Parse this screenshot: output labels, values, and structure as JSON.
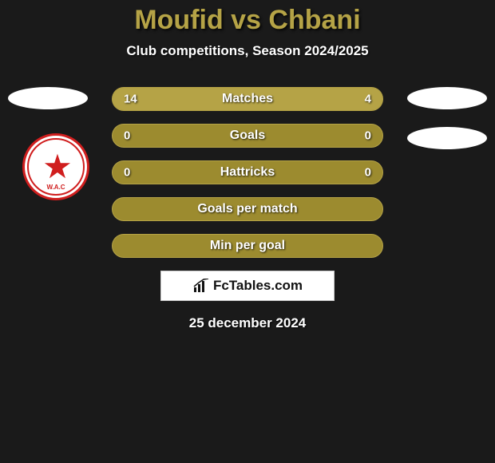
{
  "header": {
    "title": "Moufid vs Chbani",
    "subtitle": "Club competitions, Season 2024/2025"
  },
  "colors": {
    "bg": "#1a1a1a",
    "bar_base": "#9c8b2f",
    "bar_fill": "#b5a346",
    "title_color": "#b5a346",
    "text": "#ffffff",
    "logo_red": "#d01e1e",
    "logo_white": "#ffffff"
  },
  "left_club": {
    "abbr": "W.A.C",
    "name": "Wydad AC"
  },
  "bars": [
    {
      "label": "Matches",
      "left": "14",
      "right": "4",
      "left_pct": 77.8,
      "right_pct": 22.2,
      "show_values": true
    },
    {
      "label": "Goals",
      "left": "0",
      "right": "0",
      "left_pct": 0,
      "right_pct": 0,
      "show_values": true
    },
    {
      "label": "Hattricks",
      "left": "0",
      "right": "0",
      "left_pct": 0,
      "right_pct": 0,
      "show_values": true
    },
    {
      "label": "Goals per match",
      "left": "",
      "right": "",
      "left_pct": 0,
      "right_pct": 0,
      "show_values": false
    },
    {
      "label": "Min per goal",
      "left": "",
      "right": "",
      "left_pct": 0,
      "right_pct": 0,
      "show_values": false
    }
  ],
  "brand": {
    "text": "FcTables.com"
  },
  "footer": {
    "date": "25 december 2024"
  }
}
